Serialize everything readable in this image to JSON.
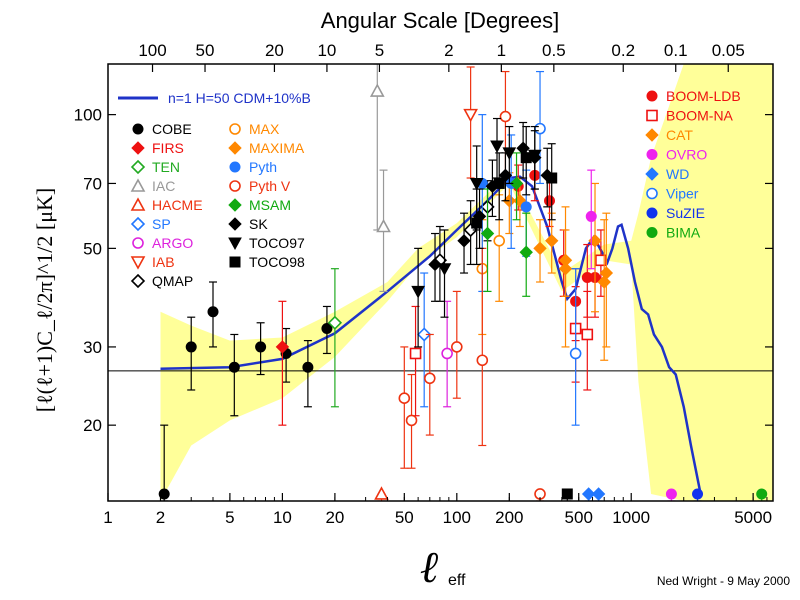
{
  "chart_data": {
    "type": "scatter",
    "title": "Angular Scale [Degrees]",
    "xlabel_main": "ℓ",
    "xlabel_sub": "eff",
    "ylabel": "[ℓ(ℓ+1)C_ℓ/2π]^1/2 [μK]",
    "x_scale": "log",
    "y_scale": "log",
    "xlim": [
      1,
      6500
    ],
    "ylim": [
      13.5,
      130
    ],
    "x_ticks": [
      "1",
      "2",
      "5",
      "10",
      "20",
      "50",
      "100",
      "200",
      "500",
      "1000",
      "5000"
    ],
    "x_tick_values": [
      1,
      2,
      5,
      10,
      20,
      50,
      100,
      200,
      500,
      1000,
      5000
    ],
    "y_ticks": [
      "20",
      "30",
      "50",
      "70",
      "100"
    ],
    "y_tick_values": [
      20,
      30,
      50,
      70,
      100
    ],
    "top_ticks": [
      "100",
      "50",
      "20",
      "10",
      "5",
      "2",
      "1",
      "0.5",
      "0.2",
      "0.1",
      "0.05"
    ],
    "top_tick_degrees": [
      100,
      50,
      20,
      10,
      5,
      2,
      1,
      0.5,
      0.2,
      0.1,
      0.05
    ],
    "reference_line": 26.5,
    "model_label": "n=1 H=50 CDM+10%B",
    "model_color": "#1f33c8",
    "model_curve": [
      [
        2,
        26.8
      ],
      [
        5,
        27.0
      ],
      [
        10,
        28.2
      ],
      [
        20,
        32.2
      ],
      [
        40,
        40.0
      ],
      [
        70,
        48.0
      ],
      [
        100,
        55.0
      ],
      [
        150,
        64.0
      ],
      [
        200,
        72.0
      ],
      [
        230,
        72.5
      ],
      [
        270,
        69.0
      ],
      [
        330,
        56.0
      ],
      [
        400,
        42.0
      ],
      [
        430,
        38.5
      ],
      [
        480,
        40.5
      ],
      [
        550,
        50.0
      ],
      [
        610,
        53.0
      ],
      [
        680,
        49.0
      ],
      [
        730,
        46.5
      ],
      [
        780,
        50.0
      ],
      [
        840,
        56.0
      ],
      [
        880,
        56.5
      ],
      [
        960,
        50.0
      ],
      [
        1050,
        42.0
      ],
      [
        1150,
        36.5
      ],
      [
        1250,
        35.5
      ],
      [
        1350,
        32.0
      ],
      [
        1500,
        30.0
      ],
      [
        1650,
        27.0
      ],
      [
        1800,
        26.0
      ],
      [
        2000,
        22.0
      ],
      [
        2200,
        18.0
      ],
      [
        2500,
        14.0
      ]
    ],
    "cv_band_color": "#ffff99",
    "cv_band": [
      [
        2,
        13.5,
        36.0
      ],
      [
        3,
        18.0,
        33.5
      ],
      [
        5,
        20.5,
        31.0
      ],
      [
        10,
        23.0,
        31.5
      ],
      [
        20,
        28.5,
        36.0
      ],
      [
        40,
        38.0,
        42.0
      ],
      [
        60,
        46.0,
        50.0
      ],
      [
        100,
        53.0,
        57.0
      ],
      [
        200,
        70.0,
        74.0
      ],
      [
        400,
        40.0,
        44.0
      ],
      [
        700,
        47.0,
        51.0
      ],
      [
        1000,
        46.0,
        52.0
      ],
      [
        1100,
        25.0,
        60.0
      ],
      [
        1300,
        14.0,
        80.0
      ],
      [
        2000,
        13.5,
        130.0
      ],
      [
        6500,
        13.5,
        130.0
      ]
    ],
    "series": [
      {
        "name": "BOOM-LDB",
        "color": "#ee1111",
        "marker": "circle",
        "filled": true,
        "points": [
          [
            225,
            69,
            61,
            77
          ],
          [
            280,
            73,
            64,
            82
          ],
          [
            340,
            64,
            56,
            72
          ],
          [
            410,
            47,
            39,
            55
          ],
          [
            480,
            38,
            31,
            45
          ],
          [
            560,
            43,
            35,
            51
          ],
          [
            620,
            43,
            35,
            51
          ]
        ]
      },
      {
        "name": "BOOM-NA",
        "color": "#ee1111",
        "marker": "square",
        "filled": false,
        "points": [
          [
            58,
            29,
            21,
            37
          ],
          [
            480,
            33,
            25,
            41
          ],
          [
            560,
            32,
            24,
            40
          ],
          [
            670,
            47,
            39,
            55
          ]
        ]
      },
      {
        "name": "CAT",
        "color": "#ff8800",
        "marker": "diamond",
        "filled": true,
        "points": [
          [
            420,
            45,
            30,
            62
          ],
          [
            620,
            52,
            36,
            70
          ],
          [
            700,
            42,
            28,
            58
          ],
          [
            720,
            44,
            30,
            60
          ]
        ]
      },
      {
        "name": "OVRO",
        "color": "#ee22ee",
        "marker": "circle",
        "filled": true,
        "points": [
          [
            590,
            59,
            45,
            75
          ],
          [
            1700,
            14,
            13.5,
            14
          ]
        ]
      },
      {
        "name": "WD",
        "color": "#2277ff",
        "marker": "diamond",
        "filled": true,
        "points": [
          [
            570,
            14,
            13.5,
            14
          ],
          [
            650,
            14,
            13.5,
            14
          ]
        ]
      },
      {
        "name": "Viper",
        "color": "#2277ff",
        "marker": "circle",
        "filled": false,
        "points": [
          [
            300,
            93,
            70,
            125
          ],
          [
            480,
            29,
            20,
            45
          ]
        ]
      },
      {
        "name": "SuZIE",
        "color": "#1133ee",
        "marker": "circle",
        "filled": true,
        "points": [
          [
            2400,
            14,
            13.5,
            14
          ]
        ]
      },
      {
        "name": "BIMA",
        "color": "#11aa11",
        "marker": "circle",
        "filled": true,
        "points": [
          [
            5600,
            14,
            13.5,
            14
          ]
        ]
      },
      {
        "name": "COBE",
        "color": "#000000",
        "marker": "circle",
        "filled": true,
        "points": [
          [
            2.1,
            14,
            13.5,
            20
          ],
          [
            3,
            30,
            24,
            35
          ],
          [
            4,
            36,
            30,
            42
          ],
          [
            5.3,
            27,
            21,
            32
          ],
          [
            7.5,
            30,
            26,
            34
          ],
          [
            10.5,
            29,
            25,
            33
          ],
          [
            14,
            27,
            22,
            31
          ],
          [
            18,
            33,
            29,
            37
          ]
        ]
      },
      {
        "name": "FIRS",
        "color": "#ee1111",
        "marker": "diamond",
        "filled": true,
        "points": [
          [
            10,
            30,
            20,
            38
          ]
        ]
      },
      {
        "name": "TEN",
        "color": "#22aa22",
        "marker": "diamond",
        "filled": false,
        "points": [
          [
            20,
            34,
            22,
            45
          ]
        ]
      },
      {
        "name": "IAC",
        "color": "#999999",
        "marker": "triangle-up",
        "filled": false,
        "points": [
          [
            35,
            113,
            55,
            130
          ],
          [
            38,
            56,
            40,
            75
          ]
        ]
      },
      {
        "name": "HACME",
        "color": "#ee3311",
        "marker": "triangle-up",
        "filled": false,
        "points": [
          [
            37,
            14,
            13.5,
            14
          ]
        ]
      },
      {
        "name": "SP",
        "color": "#2277ff",
        "marker": "diamond",
        "filled": false,
        "points": [
          [
            65,
            32,
            22,
            44
          ]
        ]
      },
      {
        "name": "ARGO",
        "color": "#dd22dd",
        "marker": "circle",
        "filled": false,
        "points": [
          [
            88,
            29,
            22,
            38
          ]
        ]
      },
      {
        "name": "IAB",
        "color": "#ee3311",
        "marker": "triangle-down",
        "filled": false,
        "points": [
          [
            120,
            100,
            72,
            128
          ]
        ]
      },
      {
        "name": "QMAP",
        "color": "#000000",
        "marker": "diamond",
        "filled": false,
        "points": [
          [
            80,
            47,
            38,
            56
          ],
          [
            120,
            55,
            46,
            64
          ],
          [
            150,
            62,
            52,
            71
          ]
        ]
      },
      {
        "name": "MAX",
        "color": "#ff8800",
        "marker": "circle",
        "filled": false,
        "points": [
          [
            140,
            45,
            32,
            58
          ],
          [
            175,
            52,
            38,
            66
          ]
        ]
      },
      {
        "name": "MAXIMA",
        "color": "#ff8800",
        "marker": "diamond",
        "filled": true,
        "points": [
          [
            200,
            64,
            54,
            74
          ],
          [
            230,
            64,
            56,
            72
          ],
          [
            300,
            50,
            42,
            58
          ],
          [
            350,
            52,
            44,
            60
          ],
          [
            420,
            47,
            39,
            55
          ]
        ]
      },
      {
        "name": "Pyth",
        "color": "#2277ff",
        "marker": "circle",
        "filled": true,
        "points": [
          [
            140,
            70,
            40,
            100
          ],
          [
            205,
            70,
            50,
            90
          ],
          [
            250,
            62,
            48,
            75
          ]
        ]
      },
      {
        "name": "Pyth V",
        "color": "#ee3311",
        "marker": "circle",
        "filled": false,
        "points": [
          [
            50,
            23,
            16,
            30
          ],
          [
            55,
            20.5,
            16,
            26
          ],
          [
            70,
            25.5,
            19,
            32
          ],
          [
            100,
            30,
            23,
            40
          ],
          [
            140,
            28,
            18,
            50
          ],
          [
            190,
            99,
            70,
            125
          ],
          [
            300,
            14,
            13.5,
            14
          ]
        ]
      },
      {
        "name": "MSAM",
        "color": "#11aa11",
        "marker": "diamond",
        "filled": true,
        "points": [
          [
            150,
            54,
            40,
            68
          ],
          [
            220,
            70,
            58,
            82
          ],
          [
            250,
            49,
            39,
            60
          ]
        ]
      },
      {
        "name": "SK",
        "color": "#000000",
        "marker": "diamond",
        "filled": true,
        "points": [
          [
            75,
            46,
            38,
            54
          ],
          [
            110,
            52,
            44,
            60
          ],
          [
            135,
            59,
            50,
            68
          ],
          [
            160,
            69,
            59,
            79
          ],
          [
            190,
            73,
            64,
            82
          ],
          [
            240,
            84,
            72,
            96
          ],
          [
            280,
            80,
            68,
            92
          ],
          [
            330,
            73,
            62,
            84
          ]
        ]
      },
      {
        "name": "TOCO97",
        "color": "#000000",
        "marker": "triangle-down",
        "filled": true,
        "points": [
          [
            60,
            40,
            30,
            50
          ],
          [
            85,
            45,
            35,
            55
          ],
          [
            130,
            70,
            55,
            85
          ],
          [
            170,
            85,
            72,
            98
          ],
          [
            200,
            82,
            70,
            94
          ],
          [
            280,
            81,
            68,
            94
          ]
        ]
      },
      {
        "name": "TOCO98",
        "color": "#000000",
        "marker": "square",
        "filled": true,
        "points": [
          [
            130,
            57,
            46,
            68
          ],
          [
            175,
            70,
            58,
            82
          ],
          [
            250,
            80,
            66,
            94
          ],
          [
            350,
            72,
            58,
            86
          ],
          [
            430,
            14,
            13.5,
            14
          ]
        ]
      }
    ],
    "legend_left": [
      "COBE",
      "FIRS",
      "TEN",
      "IAC",
      "HACME",
      "SP",
      "ARGO",
      "IAB",
      "QMAP"
    ],
    "legend_mid": [
      "MAX",
      "MAXIMA",
      "Pyth",
      "Pyth V",
      "MSAM",
      "SK",
      "TOCO97",
      "TOCO98"
    ],
    "legend_right": [
      "BOOM-LDB",
      "BOOM-NA",
      "CAT",
      "OVRO",
      "WD",
      "Viper",
      "SuZIE",
      "BIMA"
    ],
    "legend_text_colors": {
      "COBE": "#000000",
      "FIRS": "#ee1111",
      "TEN": "#22aa22",
      "IAC": "#999999",
      "HACME": "#ee3311",
      "SP": "#2277ff",
      "ARGO": "#dd22dd",
      "IAB": "#ee3311",
      "QMAP": "#000000",
      "MAX": "#ff8800",
      "MAXIMA": "#ff8800",
      "Pyth": "#2277ff",
      "Pyth V": "#ee3311",
      "MSAM": "#11aa11",
      "SK": "#000000",
      "TOCO97": "#000000",
      "TOCO98": "#000000",
      "BOOM-LDB": "#ee1111",
      "BOOM-NA": "#ee1111",
      "CAT": "#ff8800",
      "OVRO": "#ee22ee",
      "WD": "#2277ff",
      "Viper": "#2277ff",
      "SuZIE": "#1133ee",
      "BIMA": "#11aa11"
    },
    "credit": "Ned Wright - 9 May 2000"
  }
}
